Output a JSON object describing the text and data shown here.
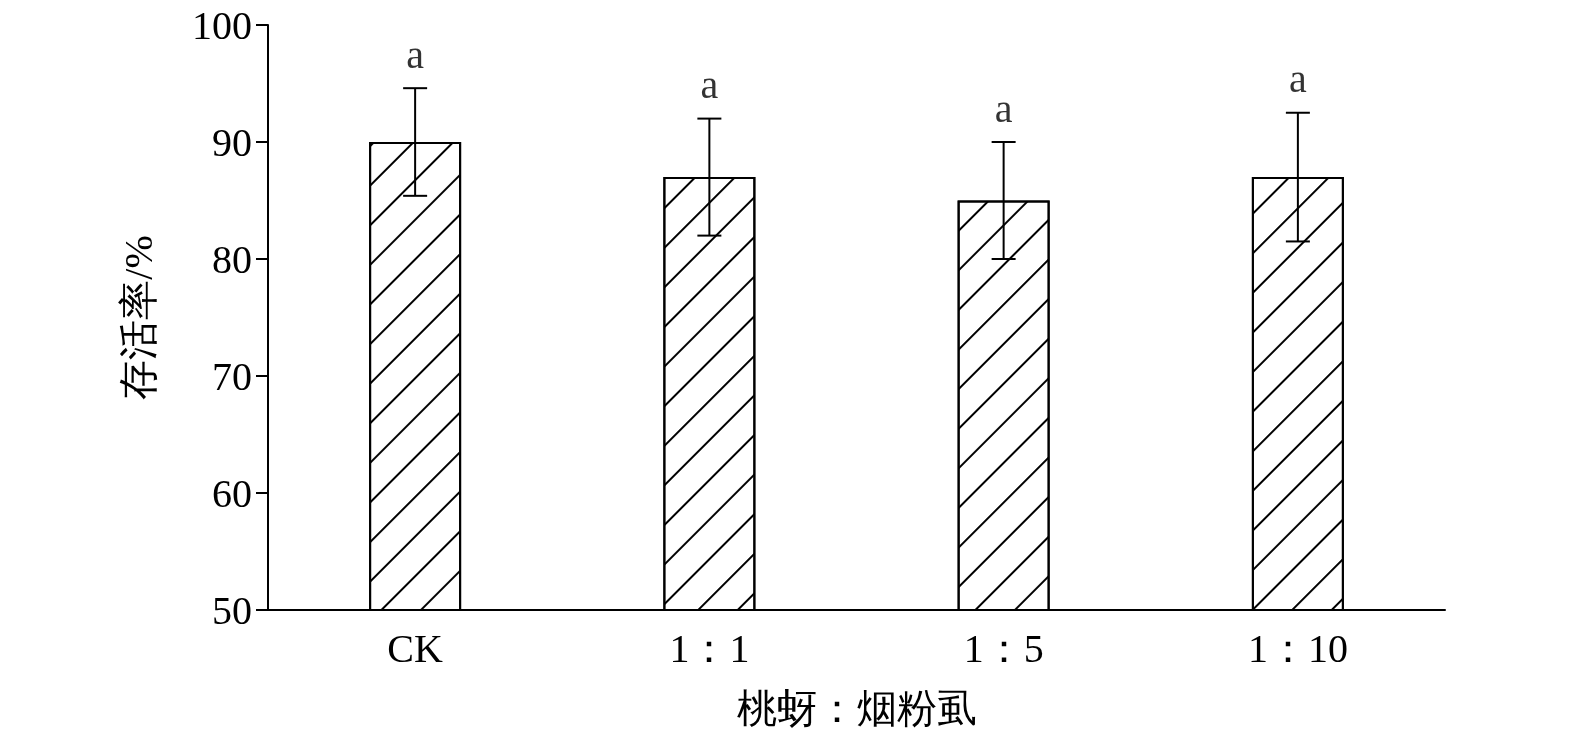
{
  "chart_data": {
    "type": "bar",
    "xlabel": "桃蚜：烟粉虱",
    "ylabel": "存活率/%",
    "categories": [
      "CK",
      "1：1",
      "1：5",
      "1：10"
    ],
    "values": [
      90,
      87,
      85,
      87
    ],
    "errors": [
      4.6,
      5,
      5,
      5.5
    ],
    "color": "#ffffff",
    "ylim": [
      50,
      100
    ],
    "yticks": [
      50,
      60,
      70,
      80,
      90,
      100
    ],
    "grid": false,
    "annotations": [
      {
        "text": "a",
        "x": "CK",
        "y": 94.6
      },
      {
        "text": "a",
        "x": "1：1",
        "y": 92
      },
      {
        "text": "a",
        "x": "1：5",
        "y": 90
      },
      {
        "text": "a",
        "x": "1：10",
        "y": 92.5
      }
    ]
  }
}
